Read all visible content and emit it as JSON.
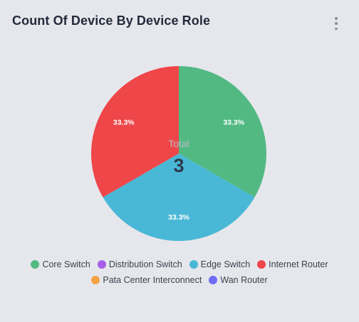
{
  "card": {
    "title": "Count Of Device By Device Role",
    "menu_icon": "more-vertical-icon"
  },
  "chart_data": {
    "type": "pie",
    "title": "Count Of Device By Device Role",
    "categories": [
      "Core Switch",
      "Distribution Switch",
      "Edge Switch",
      "Internet Router",
      "Pata Center Interconnect",
      "Wan Router"
    ],
    "values": [
      1,
      0,
      1,
      1,
      0,
      0
    ],
    "data_labels": [
      "33.3%",
      "",
      "33.3%",
      "33.3%",
      "",
      ""
    ],
    "colors": [
      "#52b983",
      "#a65ee8",
      "#49b8d6",
      "#ee4649",
      "#f5a243",
      "#6d6ef4"
    ],
    "center_label": "Total",
    "center_value": "3",
    "legend_position": "bottom"
  },
  "legend": {
    "rows": [
      [
        {
          "label": "Core Switch",
          "color": "#52b983"
        },
        {
          "label": "Distribution Switch",
          "color": "#a65ee8"
        },
        {
          "label": "Edge Switch",
          "color": "#49b8d6"
        },
        {
          "label": "Internet Router",
          "color": "#ee4649"
        }
      ],
      [
        {
          "label": "Pata Center Interconnect",
          "color": "#f5a243"
        },
        {
          "label": "Wan Router",
          "color": "#6d6ef4"
        }
      ]
    ]
  }
}
